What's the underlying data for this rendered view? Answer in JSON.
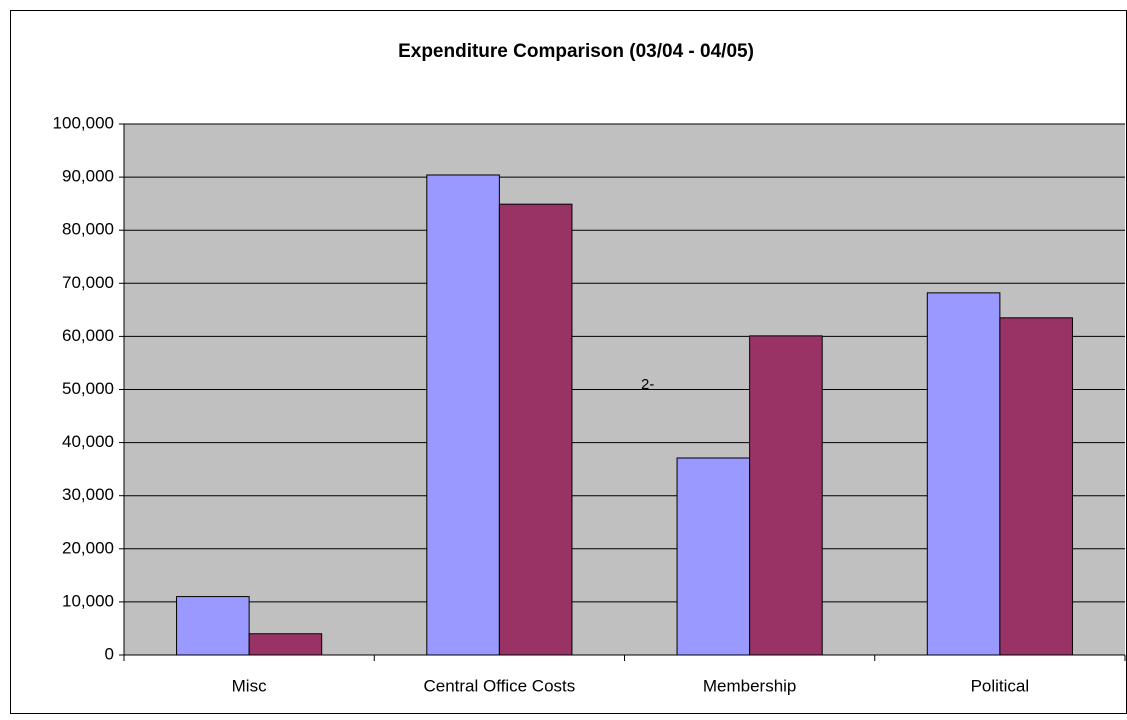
{
  "chart_data": {
    "type": "bar",
    "title": "Expenditure Comparison (03/04 - 04/05)",
    "categories": [
      "Misc",
      "Central Office Costs",
      "Membership",
      "Political"
    ],
    "series": [
      {
        "color": "#9999ff",
        "values": [
          11000,
          90400,
          37100,
          68200
        ]
      },
      {
        "color": "#993366",
        "values": [
          4000,
          84900,
          60100,
          63500
        ]
      }
    ],
    "annotation": "2-",
    "ylim": [
      0,
      100000
    ],
    "yticks": [
      0,
      {
        "value": 10000,
        "label": "10,000"
      },
      {
        "value": 20000,
        "label": "20,000"
      },
      {
        "value": 30000,
        "label": "30,000"
      },
      {
        "value": 40000,
        "label": "40,000"
      },
      {
        "value": 50000,
        "label": "50,000"
      },
      {
        "value": 60000,
        "label": "60,000"
      },
      {
        "value": 70000,
        "label": "70,000"
      },
      {
        "value": 80000,
        "label": "80,000"
      },
      {
        "value": 90000,
        "label": "90,000"
      },
      {
        "value": 100000,
        "label": "100,000"
      }
    ],
    "grid": true,
    "plot_color": "#c0c0c0"
  }
}
